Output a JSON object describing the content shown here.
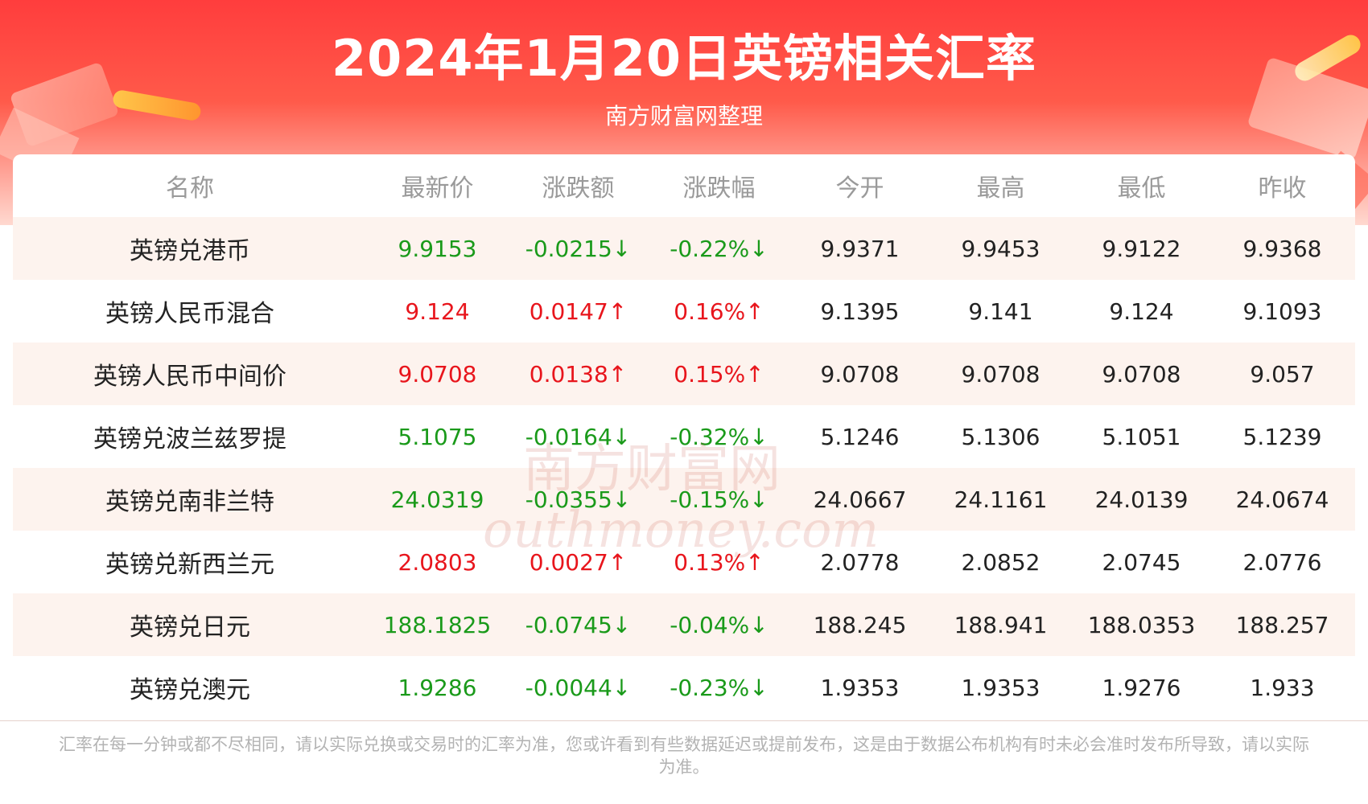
{
  "header": {
    "title": "2024年1月20日英镑相关汇率",
    "subtitle": "南方财富网整理"
  },
  "table": {
    "columns": [
      "名称",
      "最新价",
      "涨跌额",
      "涨跌幅",
      "今开",
      "最高",
      "最低",
      "昨收"
    ],
    "rows": [
      {
        "name": "英镑兑港币",
        "latest": "9.9153",
        "change": "-0.0215↓",
        "change_pct": "-0.22%↓",
        "open": "9.9371",
        "high": "9.9453",
        "low": "9.9122",
        "prev_close": "9.9368",
        "direction": "down"
      },
      {
        "name": "英镑人民币混合",
        "latest": "9.124",
        "change": "0.0147↑",
        "change_pct": "0.16%↑",
        "open": "9.1395",
        "high": "9.141",
        "low": "9.124",
        "prev_close": "9.1093",
        "direction": "up"
      },
      {
        "name": "英镑人民币中间价",
        "latest": "9.0708",
        "change": "0.0138↑",
        "change_pct": "0.15%↑",
        "open": "9.0708",
        "high": "9.0708",
        "low": "9.0708",
        "prev_close": "9.057",
        "direction": "up"
      },
      {
        "name": "英镑兑波兰兹罗提",
        "latest": "5.1075",
        "change": "-0.0164↓",
        "change_pct": "-0.32%↓",
        "open": "5.1246",
        "high": "5.1306",
        "low": "5.1051",
        "prev_close": "5.1239",
        "direction": "down"
      },
      {
        "name": "英镑兑南非兰特",
        "latest": "24.0319",
        "change": "-0.0355↓",
        "change_pct": "-0.15%↓",
        "open": "24.0667",
        "high": "24.1161",
        "low": "24.0139",
        "prev_close": "24.0674",
        "direction": "down"
      },
      {
        "name": "英镑兑新西兰元",
        "latest": "2.0803",
        "change": "0.0027↑",
        "change_pct": "0.13%↑",
        "open": "2.0778",
        "high": "2.0852",
        "low": "2.0745",
        "prev_close": "2.0776",
        "direction": "up"
      },
      {
        "name": "英镑兑日元",
        "latest": "188.1825",
        "change": "-0.0745↓",
        "change_pct": "-0.04%↓",
        "open": "188.245",
        "high": "188.941",
        "low": "188.0353",
        "prev_close": "188.257",
        "direction": "down"
      },
      {
        "name": "英镑兑澳元",
        "latest": "1.9286",
        "change": "-0.0044↓",
        "change_pct": "-0.23%↓",
        "open": "1.9353",
        "high": "1.9353",
        "low": "1.9276",
        "prev_close": "1.933",
        "direction": "down"
      }
    ]
  },
  "watermark": {
    "line1": "南方财富网",
    "line2": "outhmoney.com"
  },
  "footnote": "汇率在每一分钟或都不尽相同，请以实际兑换或交易时的汇率为准，您或许看到有些数据延迟或提前发布，这是由于数据公布机构有时未必会准时发布所导致，请以实际为准。",
  "colors": {
    "banner_red": "#ff3d3d",
    "up": "#e8151c",
    "down": "#1a9a1a",
    "row_tint": "#fdf3ee",
    "header_text": "#9a9a9a"
  }
}
